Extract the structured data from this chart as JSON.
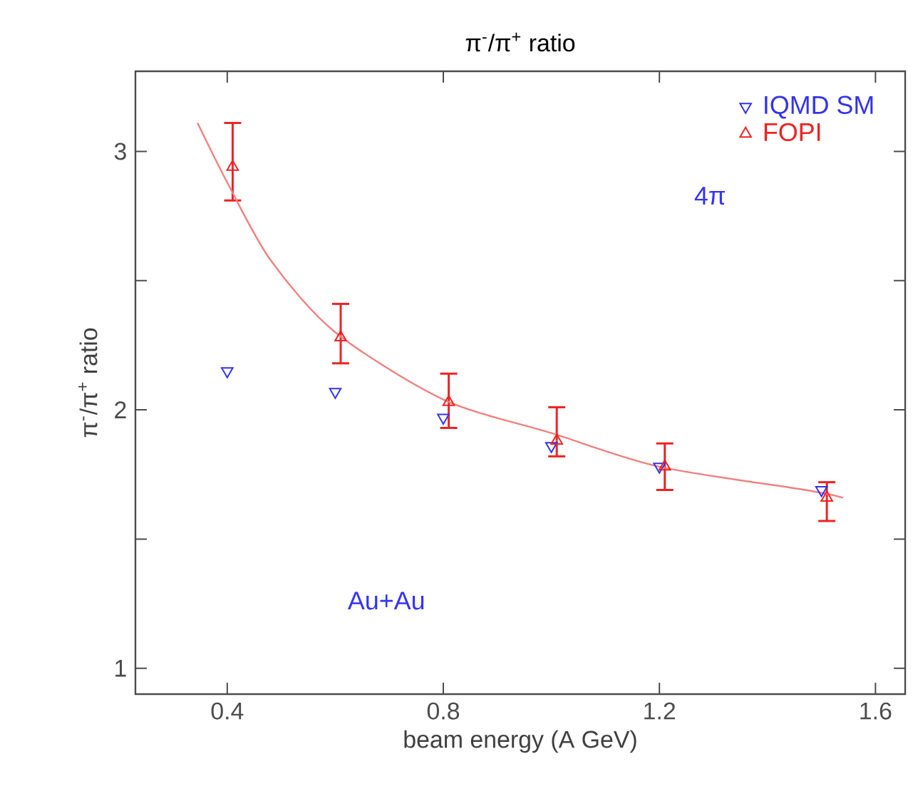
{
  "chart_data": {
    "type": "scatter",
    "title": "π$^{-}$/π$^{+}$ ratio",
    "xlabel": "beam energy (A GeV)",
    "ylabel": "π$^{-}$/π$^{+}$ ratio",
    "xlim": [
      0.23,
      1.655
    ],
    "ylim": [
      0.9,
      3.31
    ],
    "xticks": [
      0.4,
      0.8,
      1.2,
      1.6
    ],
    "yticks": [
      1,
      {
        "value": 1.5,
        "label": null
      },
      2,
      {
        "value": 2.5,
        "label": null
      },
      3
    ],
    "legend": "top right",
    "grid": false,
    "annotations": [
      "4π",
      "Au+Au"
    ],
    "series": [
      {
        "name": "IQMD SM",
        "marker": "triangle",
        "color": "#3333ee",
        "x": [
          0.4,
          0.6,
          0.8,
          1.0,
          1.2,
          1.5
        ],
        "values": [
          2.15,
          2.07,
          1.97,
          1.86,
          1.78,
          1.69
        ]
      },
      {
        "name": "FOPI",
        "marker": "triangle",
        "color": "#ee2222",
        "x": [
          0.41,
          0.61,
          0.81,
          1.01,
          1.21,
          1.51
        ],
        "values": [
          2.94,
          2.28,
          2.03,
          1.88,
          1.78,
          1.66
        ],
        "errors": [
          [
            2.81,
            3.11
          ],
          [
            2.18,
            2.41
          ],
          [
            1.93,
            2.14
          ],
          [
            1.82,
            2.01
          ],
          [
            1.69,
            1.87
          ],
          [
            1.57,
            1.72
          ]
        ]
      },
      {
        "type": "line",
        "marker": "none",
        "color": "#f08080",
        "x": [
          0.345,
          0.4,
          0.48,
          0.6,
          0.8,
          1.0,
          1.2,
          1.47,
          1.54
        ],
        "values": [
          3.11,
          2.88,
          2.58,
          2.3,
          2.04,
          1.91,
          1.78,
          1.69,
          1.66
        ]
      }
    ]
  }
}
